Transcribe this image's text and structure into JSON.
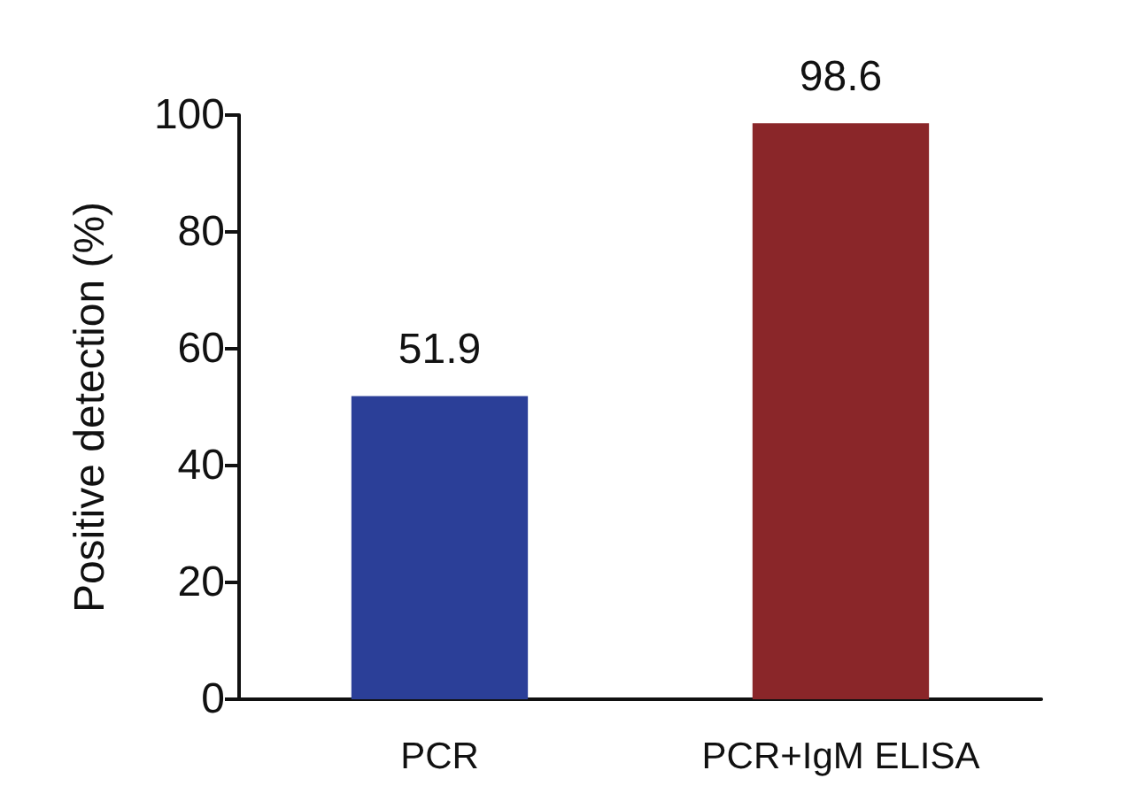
{
  "chart_data": {
    "type": "bar",
    "ylabel": "Positive detection (%)",
    "categories": [
      "PCR",
      "PCR+IgM ELISA"
    ],
    "values": [
      51.9,
      98.6
    ],
    "colors": [
      "#2b3f98",
      "#8a2629"
    ],
    "ylim": [
      0,
      100
    ],
    "yticks": [
      0,
      20,
      40,
      60,
      80,
      100
    ],
    "grid": false,
    "data_labels": true
  }
}
